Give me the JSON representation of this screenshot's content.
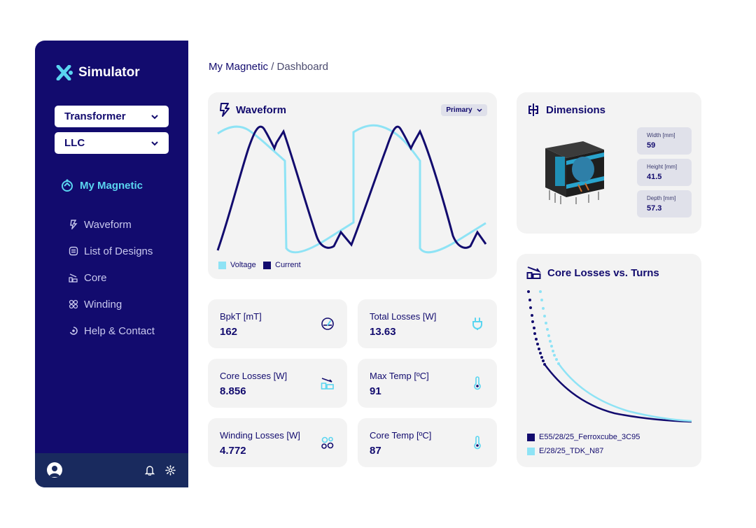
{
  "app": {
    "title": "Simulator"
  },
  "sidebar": {
    "device_select": "Transformer",
    "topology_select": "LLC",
    "main_item": "My Magnetic",
    "items": [
      {
        "label": "Waveform",
        "icon": "waveform-icon"
      },
      {
        "label": "List of Designs",
        "icon": "list-icon"
      },
      {
        "label": "Core",
        "icon": "core-icon"
      },
      {
        "label": "Winding",
        "icon": "winding-icon"
      },
      {
        "label": "Help & Contact",
        "icon": "help-icon"
      }
    ]
  },
  "breadcrumb": {
    "home": "My Magnetic",
    "separator": "/",
    "page": "Dashboard"
  },
  "waveform": {
    "title": "Waveform",
    "selector": "Primary",
    "legend": {
      "voltage": "Voltage",
      "current": "Current"
    },
    "colors": {
      "voltage": "#8ee3f5",
      "current": "#120b6e"
    }
  },
  "dimensions": {
    "title": "Dimensions",
    "width": {
      "label": "Width [mm]",
      "value": "59"
    },
    "height": {
      "label": "Height [mm]",
      "value": "41.5"
    },
    "depth": {
      "label": "Depth [mm]",
      "value": "57.3"
    }
  },
  "metrics": {
    "bpkt": {
      "label": "BpkT [mT]",
      "value": "162",
      "icon": "gauge-icon"
    },
    "total_losses": {
      "label": "Total Losses [W]",
      "value": "13.63",
      "icon": "plug-icon"
    },
    "core_losses": {
      "label": "Core Losses [W]",
      "value": "8.856",
      "icon": "core-losses-icon"
    },
    "max_temp": {
      "label": "Max Temp [ºC]",
      "value": "91",
      "icon": "thermometer-icon"
    },
    "winding_losses": {
      "label": "Winding Losses [W]",
      "value": "4.772",
      "icon": "winding-icon"
    },
    "core_temp": {
      "label": "Core Temp [ºC]",
      "value": "87",
      "icon": "thermometer-icon"
    }
  },
  "core_losses_chart": {
    "title": "Core Losses vs. Turns",
    "legend": [
      {
        "name": "E55/28/25_Ferroxcube_3C95",
        "color": "#120b6e"
      },
      {
        "name": "E/28/25_TDK_N87",
        "color": "#8ee3f5"
      }
    ]
  },
  "colors": {
    "navy": "#120b6e",
    "accent": "#5ad5f0",
    "card": "#f3f3f3"
  }
}
